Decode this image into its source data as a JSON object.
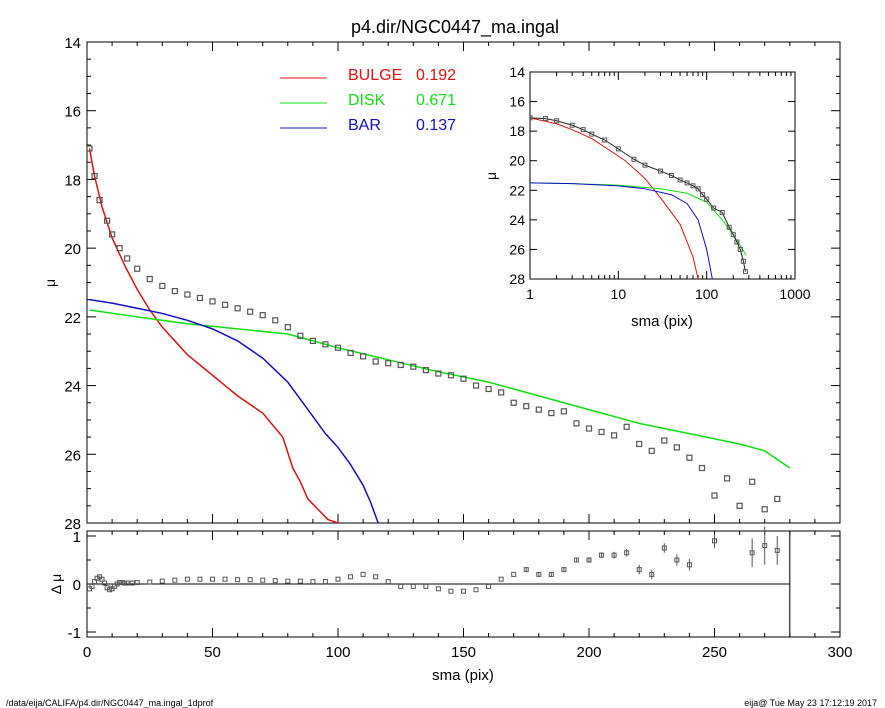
{
  "title": "p4.dir/NGC0447_ma.ingal",
  "footer": {
    "path": "/data/eija/CALIFA/p4.dir/NGC0447_ma.ingal_1dprof",
    "stamp": "eija@  Tue May 23 17:12:19 2017"
  },
  "colors": {
    "bulge": "#e01010",
    "disk": "#10e010",
    "bar": "#1010c0",
    "data": "#555555"
  },
  "chart_data": [
    {
      "type": "line",
      "panel": "main",
      "xlabel": "sma (pix)",
      "ylabel": "μ",
      "xlim": [
        0,
        300
      ],
      "ylim": [
        28,
        14
      ],
      "x_ticks": [
        "0",
        "50",
        "100",
        "150",
        "200",
        "250",
        "300"
      ],
      "y_ticks": [
        "14",
        "16",
        "18",
        "20",
        "22",
        "24",
        "26",
        "28"
      ],
      "legend": [
        {
          "label": "BULGE",
          "value": "0.192",
          "color": "#e01010"
        },
        {
          "label": "DISK",
          "value": "0.671",
          "color": "#10e010"
        },
        {
          "label": "BAR",
          "value": "0.137",
          "color": "#1010c0"
        }
      ],
      "series": [
        {
          "name": "BULGE",
          "x": [
            1,
            3,
            6,
            10,
            15,
            20,
            25,
            30,
            40,
            50,
            60,
            70,
            78,
            82,
            85,
            88,
            92,
            96,
            100
          ],
          "y": [
            17.1,
            17.9,
            18.8,
            19.7,
            20.5,
            21.2,
            21.8,
            22.3,
            23.1,
            23.7,
            24.3,
            24.8,
            25.5,
            26.4,
            26.8,
            27.3,
            27.6,
            27.9,
            28.0
          ]
        },
        {
          "name": "DISK",
          "x": [
            1,
            20,
            40,
            60,
            80,
            100,
            120,
            140,
            160,
            180,
            200,
            220,
            240,
            260,
            270,
            280
          ],
          "y": [
            21.8,
            22.0,
            22.2,
            22.35,
            22.5,
            22.9,
            23.25,
            23.6,
            23.9,
            24.3,
            24.7,
            25.1,
            25.4,
            25.7,
            25.9,
            26.4
          ]
        },
        {
          "name": "BAR",
          "x": [
            1,
            10,
            20,
            30,
            40,
            50,
            60,
            70,
            80,
            85,
            90,
            95,
            100,
            105,
            110,
            113,
            116
          ],
          "y": [
            21.5,
            21.6,
            21.75,
            21.9,
            22.1,
            22.35,
            22.7,
            23.2,
            23.9,
            24.4,
            24.9,
            25.4,
            25.8,
            26.3,
            26.9,
            27.4,
            28.0
          ]
        },
        {
          "name": "",
          "points": true,
          "x": [
            1,
            3,
            5,
            8,
            10,
            13,
            16,
            20,
            25,
            30,
            35,
            40,
            45,
            50,
            55,
            60,
            65,
            70,
            75,
            80,
            85,
            90,
            95,
            100,
            105,
            110,
            115,
            120,
            125,
            130,
            135,
            140,
            145,
            150,
            155,
            160,
            165,
            170,
            175,
            180,
            185,
            190,
            195,
            200,
            205,
            210,
            215,
            220,
            225,
            230,
            235,
            240,
            245,
            250,
            255,
            260,
            265,
            270,
            275
          ],
          "y": [
            17.1,
            17.9,
            18.6,
            19.2,
            19.6,
            20.0,
            20.3,
            20.6,
            20.9,
            21.1,
            21.25,
            21.35,
            21.45,
            21.55,
            21.65,
            21.75,
            21.85,
            21.95,
            22.1,
            22.3,
            22.55,
            22.7,
            22.8,
            22.9,
            23.05,
            23.15,
            23.3,
            23.35,
            23.4,
            23.45,
            23.55,
            23.65,
            23.7,
            23.8,
            24.0,
            24.1,
            24.2,
            24.5,
            24.6,
            24.7,
            24.8,
            24.75,
            25.1,
            25.25,
            25.35,
            25.45,
            25.2,
            25.7,
            25.9,
            25.6,
            25.8,
            26.1,
            26.4,
            27.2,
            26.7,
            27.5,
            26.8,
            27.6,
            27.3
          ]
        }
      ]
    },
    {
      "type": "line",
      "panel": "inset",
      "xlabel": "sma (pix)",
      "ylabel": "μ",
      "xscale": "log",
      "xlim": [
        1,
        1000
      ],
      "ylim": [
        28,
        14
      ],
      "x_ticks": [
        "1",
        "10",
        "100",
        "1000"
      ],
      "y_ticks": [
        "14",
        "16",
        "18",
        "20",
        "22",
        "24",
        "26",
        "28"
      ],
      "series": [
        {
          "name": "BULGE",
          "x": [
            1,
            2,
            3,
            5,
            8,
            12,
            20,
            30,
            50,
            70,
            80
          ],
          "y": [
            17.1,
            17.5,
            17.9,
            18.5,
            19.3,
            20.0,
            21.2,
            22.5,
            24.3,
            26.5,
            28.0
          ]
        },
        {
          "name": "DISK",
          "x": [
            1,
            3,
            10,
            30,
            60,
            100,
            150,
            200,
            280
          ],
          "y": [
            21.5,
            21.55,
            21.65,
            21.9,
            22.2,
            22.8,
            24.0,
            25.0,
            26.4
          ]
        },
        {
          "name": "BAR",
          "x": [
            1,
            3,
            10,
            20,
            40,
            60,
            80,
            100,
            116
          ],
          "y": [
            21.5,
            21.55,
            21.7,
            21.9,
            22.3,
            22.9,
            24.0,
            26.0,
            28.0
          ]
        },
        {
          "name": "",
          "points": true,
          "x": [
            1,
            1.5,
            2,
            3,
            4,
            5,
            7,
            10,
            15,
            20,
            30,
            40,
            50,
            60,
            70,
            80,
            90,
            100,
            120,
            150,
            180,
            200,
            220,
            240,
            260,
            275
          ],
          "y": [
            17.1,
            17.15,
            17.3,
            17.6,
            17.9,
            18.2,
            18.6,
            19.2,
            19.9,
            20.3,
            20.7,
            21.0,
            21.3,
            21.5,
            21.7,
            21.9,
            22.3,
            22.6,
            23.2,
            23.5,
            24.5,
            25.0,
            25.5,
            26.0,
            26.8,
            27.5
          ]
        }
      ]
    },
    {
      "type": "scatter",
      "panel": "residual",
      "xlabel": "sma (pix)",
      "ylabel": "Δ μ",
      "xlim": [
        0,
        300
      ],
      "ylim": [
        -1,
        1
      ],
      "y_ticks": [
        "-1",
        "0",
        "1"
      ],
      "series": [
        {
          "name": "",
          "x": [
            1,
            2,
            3,
            4,
            5,
            6,
            7,
            8,
            9,
            10,
            11,
            12,
            13,
            14,
            15,
            16,
            18,
            20,
            25,
            30,
            35,
            40,
            45,
            50,
            55,
            60,
            65,
            70,
            75,
            80,
            85,
            90,
            95,
            100,
            105,
            110,
            115,
            120,
            125,
            130,
            135,
            140,
            145,
            150,
            155,
            160,
            165,
            170,
            175,
            180,
            185,
            190,
            195,
            200,
            205,
            210,
            215,
            220,
            225,
            230,
            235,
            240,
            250,
            265,
            270,
            275
          ],
          "y": [
            -0.1,
            -0.05,
            0.05,
            0.12,
            0.15,
            0.1,
            0.02,
            -0.08,
            -0.12,
            -0.1,
            -0.05,
            0.0,
            0.03,
            0.03,
            0.02,
            0.02,
            0.02,
            0.03,
            0.04,
            0.06,
            0.08,
            0.1,
            0.1,
            0.1,
            0.1,
            0.09,
            0.09,
            0.08,
            0.07,
            0.06,
            0.06,
            0.05,
            0.05,
            0.1,
            0.15,
            0.2,
            0.15,
            0.05,
            -0.05,
            -0.05,
            -0.05,
            -0.1,
            -0.15,
            -0.15,
            -0.12,
            -0.05,
            0.1,
            0.2,
            0.3,
            0.2,
            0.2,
            0.3,
            0.5,
            0.5,
            0.6,
            0.6,
            0.65,
            0.3,
            0.2,
            0.75,
            0.5,
            0.4,
            0.9,
            0.65,
            0.8,
            0.7
          ],
          "error": [
            0.02,
            0.02,
            0.02,
            0.02,
            0.02,
            0.02,
            0.02,
            0.02,
            0.02,
            0.02,
            0.02,
            0.02,
            0.02,
            0.02,
            0.02,
            0.02,
            0.02,
            0.02,
            0.02,
            0.02,
            0.02,
            0.02,
            0.02,
            0.02,
            0.02,
            0.02,
            0.02,
            0.02,
            0.02,
            0.02,
            0.02,
            0.02,
            0.02,
            0.02,
            0.02,
            0.02,
            0.02,
            0.02,
            0.02,
            0.02,
            0.02,
            0.02,
            0.02,
            0.02,
            0.02,
            0.02,
            0.03,
            0.03,
            0.04,
            0.04,
            0.05,
            0.05,
            0.05,
            0.06,
            0.06,
            0.07,
            0.08,
            0.1,
            0.1,
            0.1,
            0.12,
            0.12,
            0.15,
            0.3,
            0.4,
            0.3
          ]
        }
      ]
    }
  ]
}
